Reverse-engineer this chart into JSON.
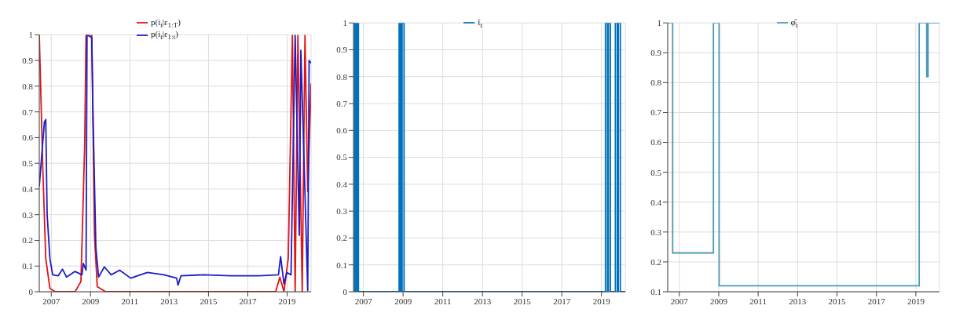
{
  "chart_data": [
    {
      "type": "line",
      "xlim": [
        2006.39,
        2020.22
      ],
      "xticks": [
        2007,
        2009,
        2011,
        2013,
        2015,
        2017,
        2019
      ],
      "ylim": [
        0,
        1
      ],
      "yticks": [
        0,
        0.1,
        0.2,
        0.3,
        0.4,
        0.5,
        0.6,
        0.7,
        0.8,
        0.9,
        1
      ],
      "grid": true,
      "legend": "top",
      "series": [
        {
          "name": "p(i$_{t}$|ε$_{1:t}$)",
          "color": "#1c1cc8",
          "x": [
            2006.39,
            2006.65,
            2006.72,
            2006.79,
            2006.93,
            2007.07,
            2007.35,
            2007.57,
            2007.78,
            2008.21,
            2008.56,
            2008.63,
            2008.77,
            2008.82,
            2009.06,
            2009.13,
            2009.27,
            2009.41,
            2009.7,
            2010.05,
            2010.48,
            2011.04,
            2011.89,
            2012.74,
            2013.38,
            2013.45,
            2013.6,
            2014.73,
            2016.15,
            2017.57,
            2018.56,
            2018.67,
            2018.84,
            2018.99,
            2019.2,
            2019.41,
            2019.62,
            2019.7,
            2019.84,
            2020.05,
            2020.12,
            2020.22
          ],
          "values": [
            0.41,
            0.66,
            0.67,
            0.3,
            0.13,
            0.066,
            0.062,
            0.088,
            0.057,
            0.079,
            0.066,
            0.11,
            0.084,
            1,
            0.99,
            0.67,
            0.17,
            0.057,
            0.097,
            0.066,
            0.084,
            0.053,
            0.075,
            0.066,
            0.053,
            0.026,
            0.062,
            0.066,
            0.062,
            0.062,
            0.066,
            0.137,
            0.031,
            0.075,
            0.066,
            1,
            0.22,
            0.94,
            0.57,
            0.005,
            0.9,
            0.89
          ]
        },
        {
          "name": "p(i$_{t}$|ε$_{1:T}$)",
          "color": "#e01414",
          "x": [
            2006.39,
            2006.57,
            2006.72,
            2006.93,
            2007.21,
            2008.21,
            2008.51,
            2008.7,
            2008.77,
            2009.06,
            2009.2,
            2009.34,
            2009.77,
            2018.42,
            2018.63,
            2018.84,
            2019.06,
            2019.27,
            2019.41,
            2019.55,
            2019.77,
            2019.91,
            2020.05,
            2020.22
          ],
          "values": [
            1,
            0.48,
            0.13,
            0.013,
            0,
            0,
            0.04,
            0.57,
            1,
            1,
            0.22,
            0.02,
            0,
            0,
            0.057,
            0,
            0.13,
            1,
            0,
            1,
            0,
            1,
            0.39,
            0.81
          ]
        }
      ]
    },
    {
      "type": "step",
      "xlim": [
        2006.5,
        2020.2
      ],
      "xticks": [
        2007,
        2009,
        2011,
        2013,
        2015,
        2017,
        2019
      ],
      "ylim": [
        0,
        1
      ],
      "yticks": [
        0,
        0.1,
        0.2,
        0.3,
        0.4,
        0.5,
        0.6,
        0.7,
        0.8,
        0.9,
        1
      ],
      "grid": true,
      "legend": "top",
      "series": [
        {
          "name": "î$_{t}$",
          "color": "#0072bd",
          "x": [
            2006.5,
            2006.55,
            2006.6,
            2006.65,
            2006.7,
            2006.75,
            2008.8,
            2008.85,
            2008.88,
            2008.92,
            2008.95,
            2009.05,
            2019.2,
            2019.3,
            2019.35,
            2019.45,
            2019.7,
            2019.8,
            2019.85,
            2019.95,
            2020.2
          ],
          "values": [
            1,
            0,
            1,
            0,
            1,
            0,
            1,
            0,
            1,
            0,
            1,
            0,
            1,
            0,
            1,
            0,
            1,
            0,
            1,
            0,
            0
          ]
        }
      ]
    },
    {
      "type": "step",
      "xlim": [
        2006.41,
        2020.2
      ],
      "xticks": [
        2007,
        2009,
        2011,
        2013,
        2015,
        2017,
        2019
      ],
      "ylim": [
        0.1,
        1
      ],
      "yticks": [
        0.1,
        0.2,
        0.3,
        0.4,
        0.5,
        0.6,
        0.7,
        0.8,
        0.9,
        1
      ],
      "grid": true,
      "legend": "top",
      "series": [
        {
          "name": "φ̂$_{t}$",
          "color": "#4a9ab5",
          "x": [
            2006.41,
            2006.66,
            2008.73,
            2009.02,
            2019.17,
            2019.55,
            2019.62,
            2020.2
          ],
          "values": [
            1,
            0.23,
            1,
            0.12,
            1,
            0.82,
            1,
            1
          ]
        }
      ]
    }
  ]
}
